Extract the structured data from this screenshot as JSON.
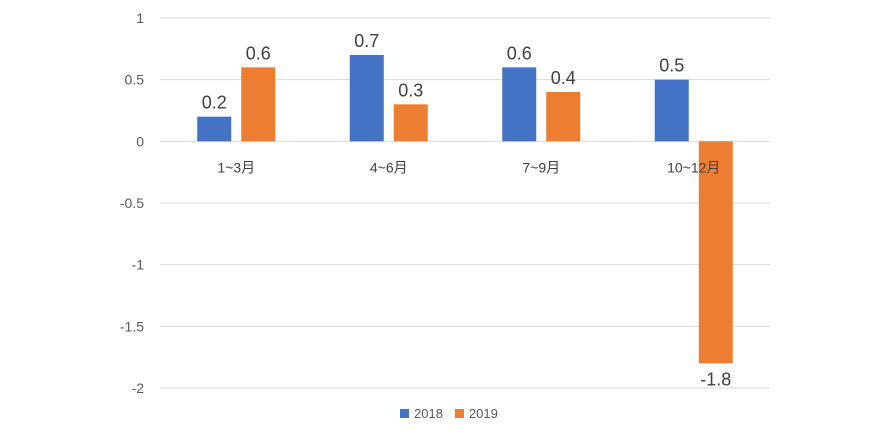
{
  "chart_data": {
    "type": "bar",
    "title": "",
    "xlabel": "",
    "ylabel": "",
    "categories": [
      "1~3月",
      "4~6月",
      "7~9月",
      "10~12月"
    ],
    "series": [
      {
        "name": "2018",
        "color": "#4472C4",
        "values": [
          0.2,
          0.7,
          0.6,
          0.5
        ],
        "labels": [
          "0.2",
          "0.7",
          "0.6",
          "0.5"
        ]
      },
      {
        "name": "2019",
        "color": "#ED7D31",
        "values": [
          0.6,
          0.3,
          0.4,
          -1.8
        ],
        "labels": [
          "0.6",
          "0.3",
          "0.4",
          "-1.8"
        ]
      }
    ],
    "ylim": [
      -2,
      1
    ],
    "yticks": [
      1,
      0.5,
      0,
      -0.5,
      -1,
      -1.5,
      -2
    ],
    "ytick_labels": [
      "1",
      "0.5",
      "0",
      "-0.5",
      "-1",
      "-1.5",
      "-2"
    ],
    "grid": true,
    "legend_position": "bottom"
  }
}
